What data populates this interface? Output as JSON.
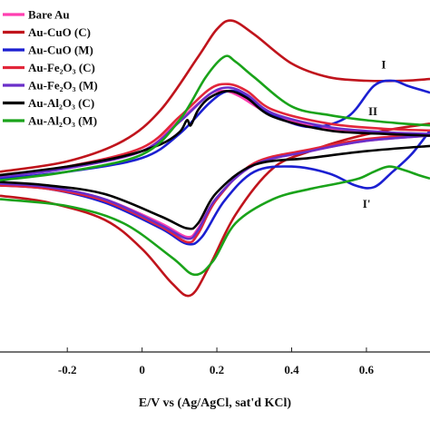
{
  "chart_data": {
    "type": "line",
    "title": "",
    "xlabel": "E/V vs (Ag/AgCl, sat'd KCl)",
    "ylabel": "",
    "xlim": [
      -0.38,
      0.77
    ],
    "ylim": [
      -1.05,
      1.0
    ],
    "x_ticks": [
      {
        "value": -0.2,
        "label": "-0.2"
      },
      {
        "value": 0,
        "label": "0"
      },
      {
        "value": 0.2,
        "label": "0.2"
      },
      {
        "value": 0.4,
        "label": "0.4"
      },
      {
        "value": 0.6,
        "label": "0.6"
      }
    ],
    "grid": false,
    "legend_position": "top-left",
    "series": [
      {
        "name": "Bare Au",
        "color": "#ff3fb0",
        "forward": [
          [
            -0.38,
            -0.03
          ],
          [
            -0.2,
            0.02
          ],
          [
            0,
            0.12
          ],
          [
            0.1,
            0.3
          ],
          [
            0.18,
            0.45
          ],
          [
            0.22,
            0.47
          ],
          [
            0.26,
            0.44
          ],
          [
            0.35,
            0.33
          ],
          [
            0.5,
            0.25
          ],
          [
            0.65,
            0.22
          ],
          [
            0.77,
            0.21
          ]
        ],
        "reverse": [
          [
            0.77,
            0.21
          ],
          [
            0.6,
            0.18
          ],
          [
            0.45,
            0.12
          ],
          [
            0.3,
            0.04
          ],
          [
            0.2,
            -0.15
          ],
          [
            0.15,
            -0.33
          ],
          [
            0.12,
            -0.38
          ],
          [
            0.05,
            -0.3
          ],
          [
            -0.1,
            -0.16
          ],
          [
            -0.25,
            -0.09
          ],
          [
            -0.38,
            -0.07
          ]
        ]
      },
      {
        "name": "Au-CuO (C)",
        "color": "#c0141c",
        "forward": [
          [
            -0.38,
            0.0
          ],
          [
            -0.2,
            0.06
          ],
          [
            -0.05,
            0.18
          ],
          [
            0.05,
            0.36
          ],
          [
            0.15,
            0.67
          ],
          [
            0.2,
            0.83
          ],
          [
            0.24,
            0.88
          ],
          [
            0.3,
            0.8
          ],
          [
            0.4,
            0.63
          ],
          [
            0.5,
            0.55
          ],
          [
            0.6,
            0.53
          ],
          [
            0.7,
            0.53
          ],
          [
            0.77,
            0.54
          ]
        ],
        "reverse": [
          [
            0.77,
            0.28
          ],
          [
            0.65,
            0.24
          ],
          [
            0.55,
            0.19
          ],
          [
            0.45,
            0.12
          ],
          [
            0.35,
            0.02
          ],
          [
            0.25,
            -0.25
          ],
          [
            0.18,
            -0.55
          ],
          [
            0.13,
            -0.72
          ],
          [
            0.08,
            -0.65
          ],
          [
            0.0,
            -0.45
          ],
          [
            -0.1,
            -0.28
          ],
          [
            -0.25,
            -0.18
          ],
          [
            -0.38,
            -0.14
          ]
        ]
      },
      {
        "name": "Au-CuO (M)",
        "color": "#1b1fd1",
        "forward": [
          [
            -0.38,
            -0.04
          ],
          [
            -0.2,
            0.0
          ],
          [
            0,
            0.08
          ],
          [
            0.1,
            0.22
          ],
          [
            0.18,
            0.4
          ],
          [
            0.23,
            0.47
          ],
          [
            0.28,
            0.44
          ],
          [
            0.35,
            0.33
          ],
          [
            0.45,
            0.26
          ],
          [
            0.55,
            0.32
          ],
          [
            0.62,
            0.5
          ],
          [
            0.67,
            0.53
          ],
          [
            0.71,
            0.5
          ],
          [
            0.77,
            0.46
          ]
        ],
        "reverse": [
          [
            0.77,
            0.24
          ],
          [
            0.72,
            0.1
          ],
          [
            0.67,
            0.0
          ],
          [
            0.62,
            -0.09
          ],
          [
            0.57,
            -0.08
          ],
          [
            0.5,
            -0.01
          ],
          [
            0.4,
            0.03
          ],
          [
            0.3,
            0.0
          ],
          [
            0.22,
            -0.17
          ],
          [
            0.16,
            -0.38
          ],
          [
            0.12,
            -0.42
          ],
          [
            0.05,
            -0.33
          ],
          [
            -0.1,
            -0.18
          ],
          [
            -0.25,
            -0.1
          ],
          [
            -0.38,
            -0.08
          ]
        ]
      },
      {
        "name": "Au-Fe₂O₃ (C)",
        "color": "#e2263a",
        "forward": [
          [
            -0.38,
            -0.02
          ],
          [
            -0.2,
            0.03
          ],
          [
            0,
            0.14
          ],
          [
            0.1,
            0.32
          ],
          [
            0.18,
            0.48
          ],
          [
            0.23,
            0.51
          ],
          [
            0.28,
            0.47
          ],
          [
            0.35,
            0.36
          ],
          [
            0.5,
            0.28
          ],
          [
            0.65,
            0.25
          ],
          [
            0.77,
            0.24
          ]
        ],
        "reverse": [
          [
            0.77,
            0.22
          ],
          [
            0.6,
            0.19
          ],
          [
            0.45,
            0.13
          ],
          [
            0.3,
            0.05
          ],
          [
            0.2,
            -0.16
          ],
          [
            0.15,
            -0.36
          ],
          [
            0.12,
            -0.41
          ],
          [
            0.05,
            -0.32
          ],
          [
            -0.1,
            -0.17
          ],
          [
            -0.25,
            -0.1
          ],
          [
            -0.38,
            -0.08
          ]
        ]
      },
      {
        "name": "Au-Fe₂O₃ (M)",
        "color": "#6a2fc9",
        "forward": [
          [
            -0.38,
            -0.03
          ],
          [
            -0.2,
            0.02
          ],
          [
            0,
            0.12
          ],
          [
            0.1,
            0.29
          ],
          [
            0.18,
            0.45
          ],
          [
            0.23,
            0.49
          ],
          [
            0.28,
            0.45
          ],
          [
            0.35,
            0.34
          ],
          [
            0.5,
            0.26
          ],
          [
            0.65,
            0.23
          ],
          [
            0.77,
            0.22
          ]
        ],
        "reverse": [
          [
            0.77,
            0.21
          ],
          [
            0.6,
            0.18
          ],
          [
            0.45,
            0.12
          ],
          [
            0.3,
            0.04
          ],
          [
            0.2,
            -0.15
          ],
          [
            0.15,
            -0.34
          ],
          [
            0.12,
            -0.39
          ],
          [
            0.05,
            -0.31
          ],
          [
            -0.1,
            -0.16
          ],
          [
            -0.25,
            -0.09
          ],
          [
            -0.38,
            -0.07
          ]
        ]
      },
      {
        "name": "Au-Al₂O₃ (C)",
        "color": "#000000",
        "forward": [
          [
            -0.38,
            -0.02
          ],
          [
            -0.2,
            0.03
          ],
          [
            -0.05,
            0.09
          ],
          [
            0.05,
            0.16
          ],
          [
            0.1,
            0.23
          ],
          [
            0.12,
            0.3
          ],
          [
            0.13,
            0.27
          ],
          [
            0.15,
            0.36
          ],
          [
            0.18,
            0.43
          ],
          [
            0.23,
            0.47
          ],
          [
            0.28,
            0.43
          ],
          [
            0.35,
            0.32
          ],
          [
            0.5,
            0.24
          ],
          [
            0.65,
            0.22
          ],
          [
            0.77,
            0.21
          ]
        ],
        "reverse": [
          [
            0.77,
            0.15
          ],
          [
            0.6,
            0.12
          ],
          [
            0.45,
            0.08
          ],
          [
            0.3,
            0.04
          ],
          [
            0.2,
            -0.12
          ],
          [
            0.15,
            -0.3
          ],
          [
            0.12,
            -0.33
          ],
          [
            0.05,
            -0.26
          ],
          [
            -0.1,
            -0.13
          ],
          [
            -0.25,
            -0.08
          ],
          [
            -0.38,
            -0.06
          ]
        ]
      },
      {
        "name": "Au-Al₂O₃ (M)",
        "color": "#1aa31a",
        "forward": [
          [
            -0.38,
            -0.05
          ],
          [
            -0.2,
            0.0
          ],
          [
            0,
            0.1
          ],
          [
            0.1,
            0.3
          ],
          [
            0.17,
            0.55
          ],
          [
            0.22,
            0.67
          ],
          [
            0.25,
            0.64
          ],
          [
            0.3,
            0.55
          ],
          [
            0.4,
            0.38
          ],
          [
            0.5,
            0.33
          ],
          [
            0.6,
            0.3
          ],
          [
            0.7,
            0.28
          ],
          [
            0.77,
            0.27
          ]
        ],
        "reverse": [
          [
            0.77,
            -0.04
          ],
          [
            0.74,
            -0.02
          ],
          [
            0.7,
            0.01
          ],
          [
            0.66,
            0.03
          ],
          [
            0.62,
            0.0
          ],
          [
            0.58,
            -0.04
          ],
          [
            0.52,
            -0.07
          ],
          [
            0.45,
            -0.1
          ],
          [
            0.35,
            -0.16
          ],
          [
            0.25,
            -0.3
          ],
          [
            0.19,
            -0.52
          ],
          [
            0.14,
            -0.6
          ],
          [
            0.08,
            -0.5
          ],
          [
            -0.05,
            -0.3
          ],
          [
            -0.2,
            -0.2
          ],
          [
            -0.38,
            -0.16
          ]
        ]
      }
    ],
    "annotations": [
      {
        "text": "I",
        "x": 0.64,
        "y": 0.6
      },
      {
        "text": "II",
        "x": 0.605,
        "y": 0.33
      },
      {
        "text": "I'",
        "x": 0.59,
        "y": -0.21
      }
    ]
  }
}
